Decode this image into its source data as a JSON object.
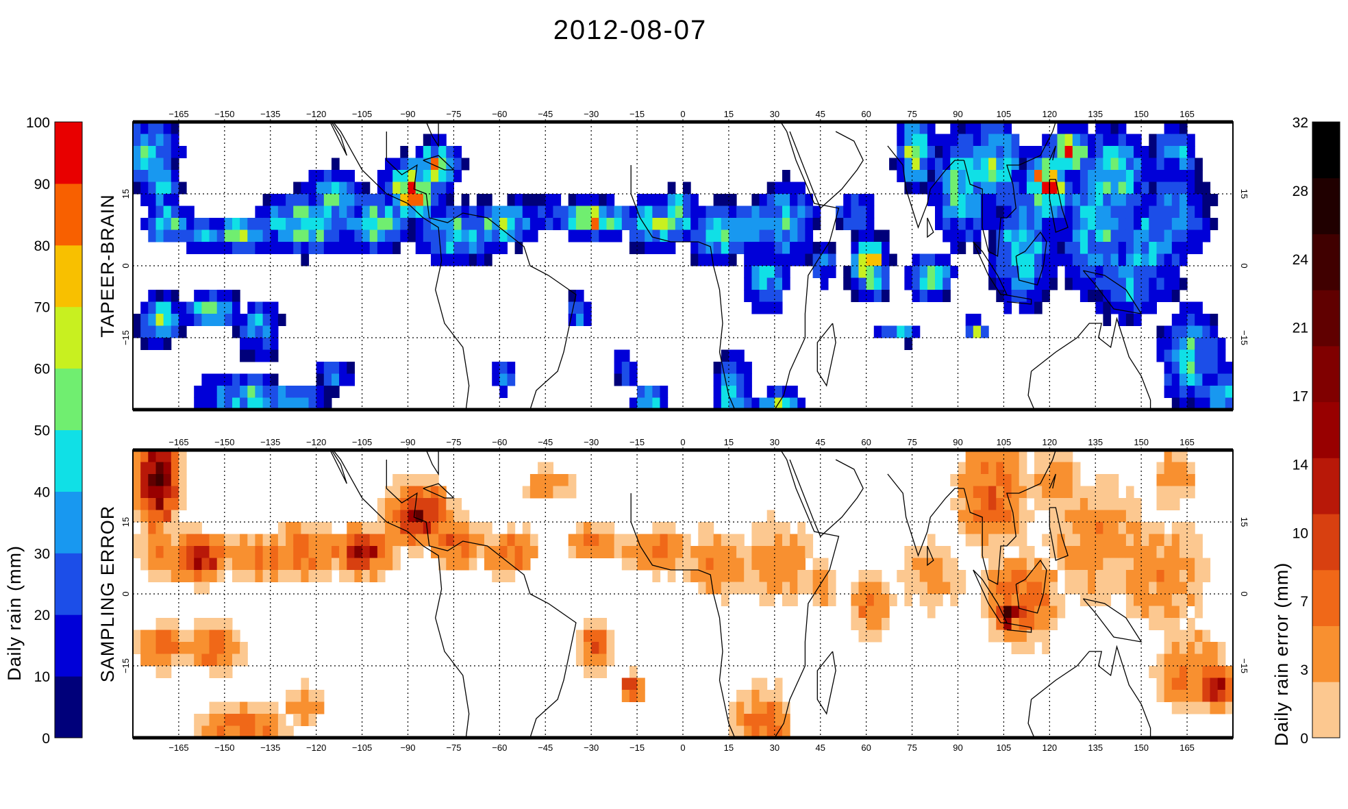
{
  "title": "2012-08-07",
  "chart_data": [
    {
      "type": "heatmap",
      "name": "TAPEER-BRAIN",
      "ylabel": "TAPEER-BRAIN",
      "xlim": [
        -180,
        180
      ],
      "ylim": [
        -30,
        30
      ],
      "x_ticks": [
        "-165",
        "-150",
        "-135",
        "-120",
        "-105",
        "-90",
        "-75",
        "-60",
        "-45",
        "-30",
        "-15",
        "0",
        "15",
        "30",
        "45",
        "60",
        "75",
        "90",
        "105",
        "120",
        "135",
        "150",
        "165"
      ],
      "y_ticks": [
        "15",
        "0",
        "-15"
      ],
      "grid": true,
      "colorbar": {
        "label": "Daily rain (mm)",
        "ticks": [
          "0",
          "10",
          "20",
          "30",
          "40",
          "50",
          "60",
          "70",
          "80",
          "90",
          "100"
        ],
        "colors": [
          "#00007a",
          "#0000d8",
          "#1c4ee8",
          "#1898f0",
          "#10e0e6",
          "#70ee70",
          "#c8f020",
          "#f8c000",
          "#f86000",
          "#e80000"
        ],
        "position": "left"
      },
      "rain_features": [
        {
          "lon": 132,
          "lat": 10,
          "value": 20
        },
        {
          "lon": 105,
          "lat": 20,
          "value": 45
        },
        {
          "lon": 60,
          "lat": 0,
          "value": 70
        },
        {
          "lon": -83,
          "lat": 18,
          "value": 80
        },
        {
          "lon": -30,
          "lat": 11,
          "value": 60
        },
        {
          "lon": -170,
          "lat": -11,
          "value": 40
        },
        {
          "lon": -145,
          "lat": -28,
          "value": 45
        },
        {
          "lon": 120,
          "lat": 18,
          "value": 90
        },
        {
          "lon": 30,
          "lat": -28,
          "value": 40
        }
      ]
    },
    {
      "type": "heatmap",
      "name": "SAMPLING ERROR",
      "ylabel": "SAMPLING ERROR",
      "xlim": [
        -180,
        180
      ],
      "ylim": [
        -30,
        30
      ],
      "x_ticks": [
        "-165",
        "-150",
        "-135",
        "-120",
        "-105",
        "-90",
        "-75",
        "-60",
        "-45",
        "-30",
        "-15",
        "0",
        "15",
        "30",
        "45",
        "60",
        "75",
        "90",
        "105",
        "120",
        "135",
        "150",
        "165"
      ],
      "y_ticks": [
        "15",
        "0",
        "-15"
      ],
      "grid": true,
      "colorbar": {
        "label": "Daily rain error (mm)",
        "ticks": [
          "0",
          "3",
          "7",
          "10",
          "14",
          "17",
          "21",
          "24",
          "28",
          "32"
        ],
        "colors": [
          "#fcc890",
          "#f89030",
          "#f06818",
          "#d84010",
          "#b81808",
          "#980000",
          "#800000",
          "#600000",
          "#400000",
          "#200000",
          "#000000"
        ],
        "position": "right"
      },
      "error_features": [
        {
          "lon": -173,
          "lat": 25,
          "value": 20
        },
        {
          "lon": -85,
          "lat": 20,
          "value": 14
        },
        {
          "lon": -160,
          "lat": 9,
          "value": 17
        },
        {
          "lon": 105,
          "lat": -3,
          "value": 28
        },
        {
          "lon": 173,
          "lat": -18,
          "value": 12
        }
      ]
    }
  ]
}
